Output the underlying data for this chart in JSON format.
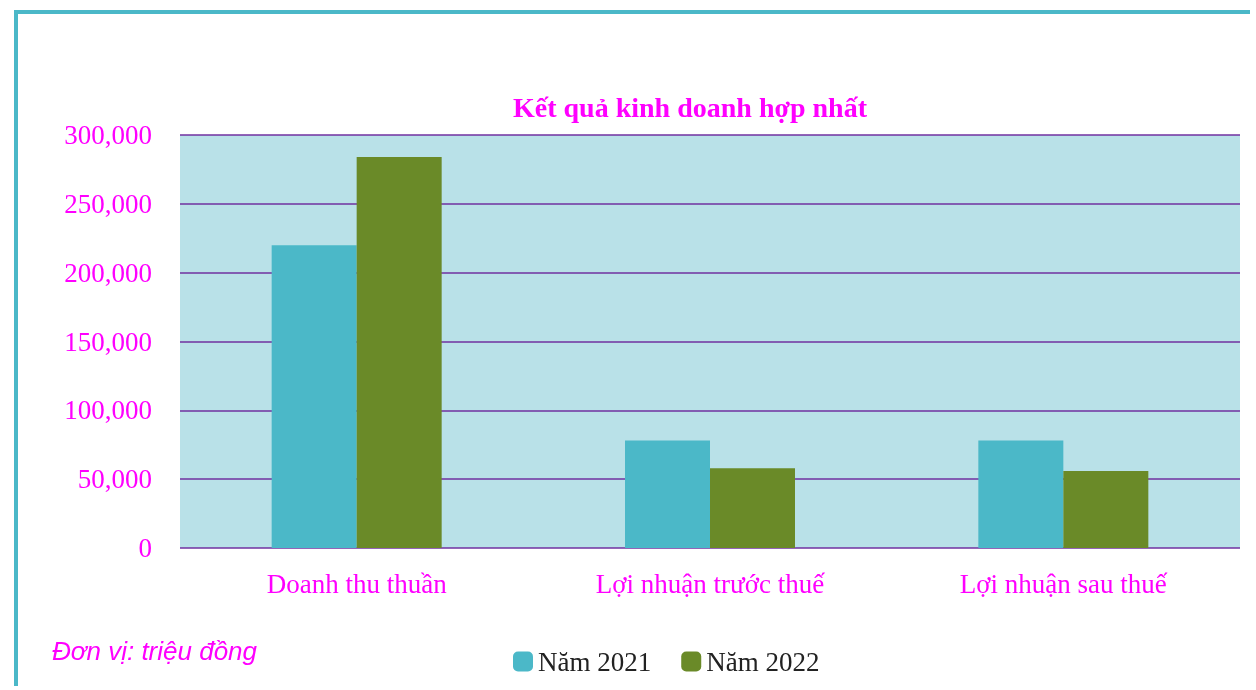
{
  "chart_data": {
    "type": "bar",
    "title": "Kết quả kinh doanh hợp nhất",
    "categories": [
      "Doanh thu thuần",
      "Lợi nhuận trước thuế",
      "Lợi nhuận sau thuế"
    ],
    "series": [
      {
        "name": "Năm 2021",
        "color": "#4bb8c8",
        "values": [
          220000,
          78000,
          78000
        ]
      },
      {
        "name": "Năm 2022",
        "color": "#6a8a28",
        "values": [
          284000,
          58000,
          56000
        ]
      }
    ],
    "ylim": [
      0,
      300000
    ],
    "yticks": [
      {
        "value": 0,
        "label": "0"
      },
      {
        "value": 50000,
        "label": "50,000"
      },
      {
        "value": 100000,
        "label": "100,000"
      },
      {
        "value": 150000,
        "label": "150,000"
      },
      {
        "value": 200000,
        "label": "200,000"
      },
      {
        "value": 250000,
        "label": "250,000"
      },
      {
        "value": 300000,
        "label": "300,000"
      }
    ],
    "grid": "y",
    "legend": "bottom",
    "annotations": [
      "Đơn vị: triệu đồng"
    ]
  }
}
